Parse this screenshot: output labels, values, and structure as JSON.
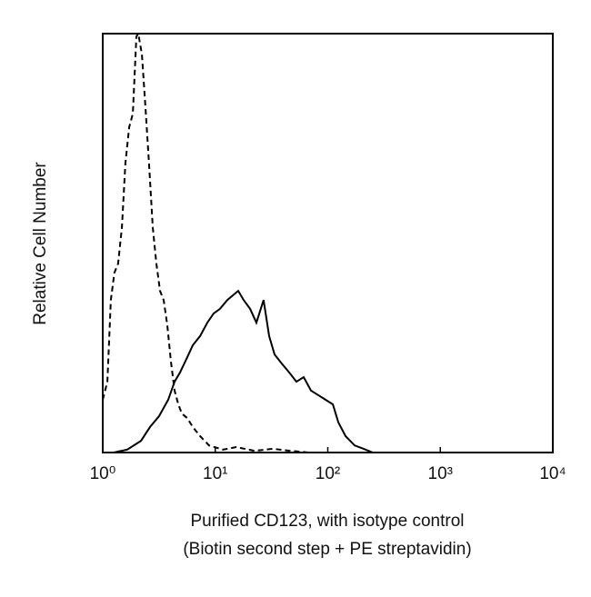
{
  "chart_data": {
    "type": "line",
    "xlabel": [
      "Purified CD123, with isotype control",
      "(Biotin second step + PE streptavidin)"
    ],
    "ylabel": "Relative Cell Number",
    "xscale": "log",
    "xlim": [
      1,
      10000
    ],
    "xticks": [
      {
        "value": 1,
        "label": "10⁰"
      },
      {
        "value": 10,
        "label": "10¹"
      },
      {
        "value": 100,
        "label": "10²"
      },
      {
        "value": 1000,
        "label": "10³"
      },
      {
        "value": 10000,
        "label": "10⁴"
      }
    ],
    "ylim": [
      0,
      100
    ],
    "series": [
      {
        "color": "#000000",
        "line_style": "dashed",
        "x": [
          1.0,
          1.1,
          1.18,
          1.27,
          1.37,
          1.48,
          1.59,
          1.72,
          1.85,
          1.99,
          2.07,
          2.23,
          2.4,
          2.58,
          2.78,
          3.0,
          3.23,
          3.48,
          3.75,
          4.04,
          4.35,
          4.69,
          5.05,
          5.64,
          6.31,
          7.33,
          8.82,
          11.7,
          15.4,
          22.4,
          32.4,
          47.1,
          68.2,
          99.1
        ],
        "values": [
          12.6,
          16.9,
          36.4,
          42.9,
          45.1,
          53.8,
          69.0,
          77.7,
          80.9,
          99.3,
          100,
          95.0,
          82.0,
          69.0,
          53.8,
          45.1,
          38.6,
          36.4,
          30.4,
          21.7,
          14.8,
          11.5,
          9.3,
          8.2,
          6.1,
          3.9,
          1.7,
          0.7,
          1.3,
          0.4,
          0.9,
          0.4,
          0,
          0
        ]
      },
      {
        "color": "#000000",
        "line_style": "solid",
        "x": [
          1.25,
          1.65,
          2.19,
          2.63,
          3.17,
          3.82,
          4.35,
          4.86,
          5.54,
          6.31,
          7.33,
          8.49,
          9.68,
          11.0,
          12.8,
          14.3,
          16.0,
          17.9,
          20.4,
          23.2,
          26.9,
          30.1,
          33.7,
          39.1,
          45.4,
          52.6,
          61.1,
          70.9,
          82.3,
          95.5,
          111,
          124,
          144,
          173,
          208,
          251,
          365
        ],
        "values": [
          0,
          0.7,
          2.8,
          6.1,
          8.7,
          12.6,
          16.9,
          19.1,
          22.3,
          25.6,
          27.8,
          31.0,
          33.2,
          34.3,
          36.4,
          37.5,
          38.6,
          36.4,
          34.3,
          31.0,
          36.4,
          27.8,
          23.4,
          21.2,
          19.1,
          16.9,
          18.0,
          14.8,
          13.7,
          12.6,
          11.5,
          7.2,
          3.9,
          1.7,
          0.9,
          0,
          0
        ]
      }
    ]
  }
}
